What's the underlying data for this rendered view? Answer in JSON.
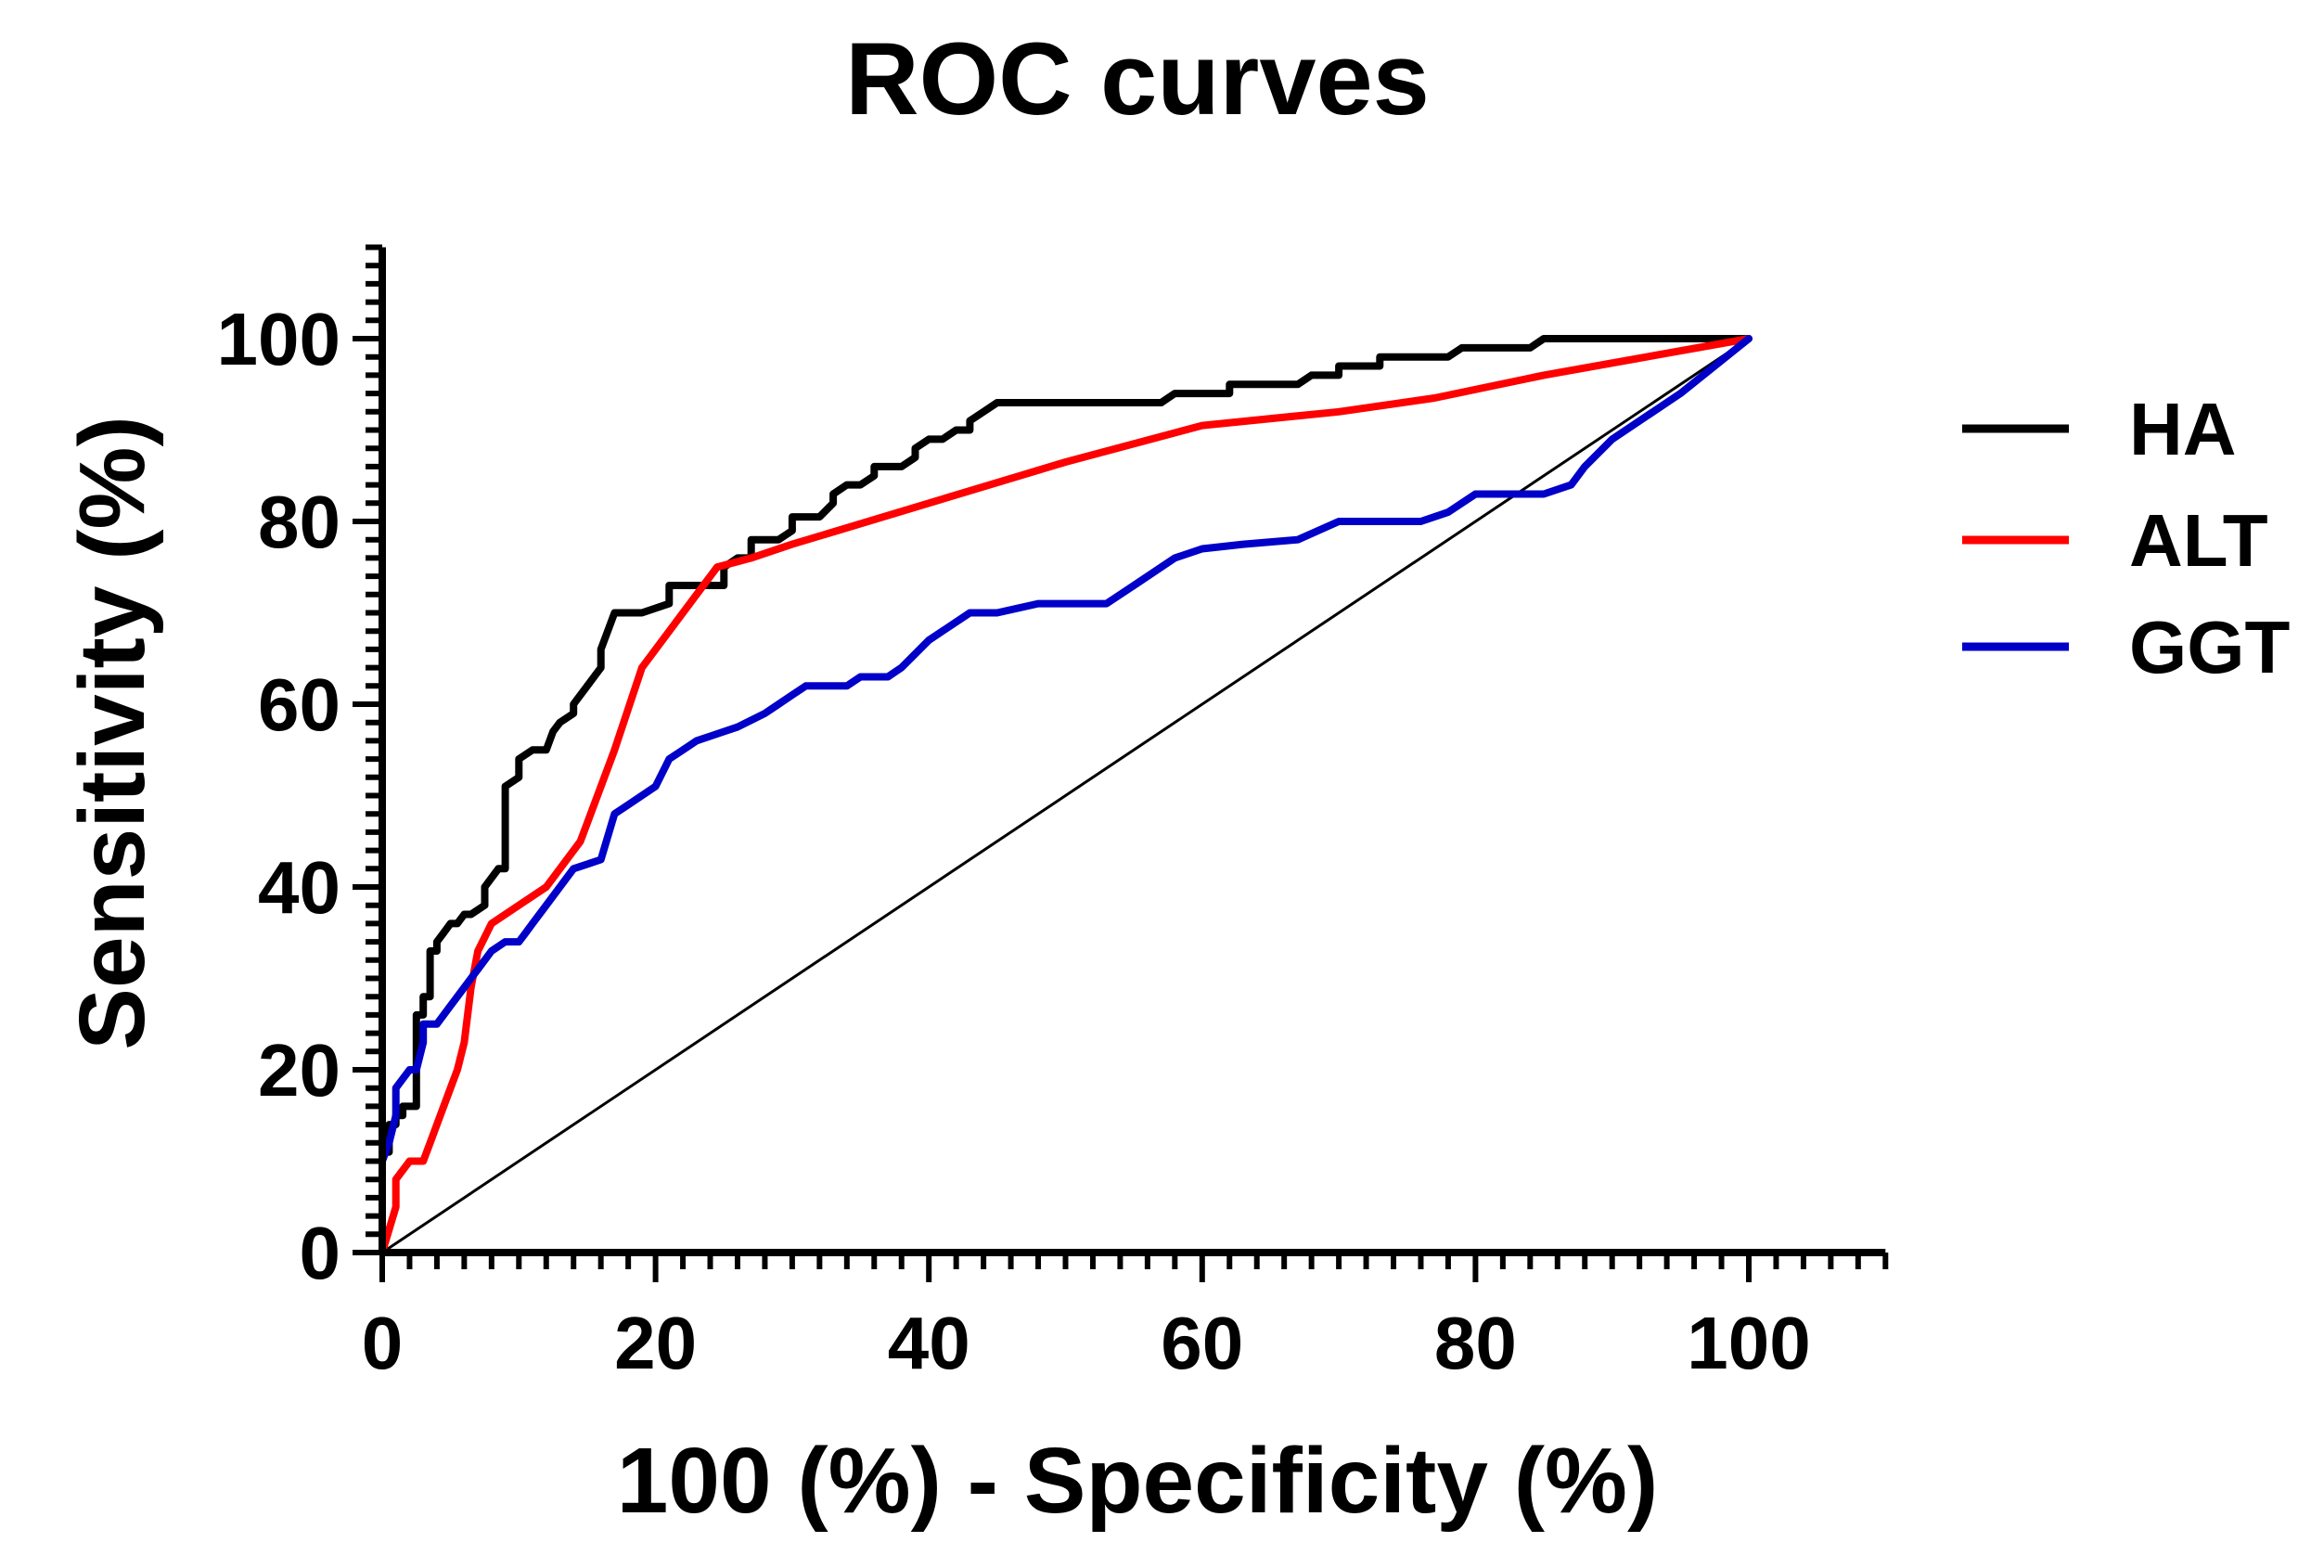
{
  "chart_data": {
    "type": "line",
    "title": "ROC curves",
    "xlabel": "100 (%) - Specificity (%)",
    "ylabel": "Sensitivity (%)",
    "xlim": [
      0,
      110
    ],
    "ylim": [
      0,
      110
    ],
    "xticks": [
      0,
      20,
      40,
      60,
      80,
      100
    ],
    "yticks": [
      0,
      20,
      40,
      60,
      80,
      100
    ],
    "xtick_labels": [
      "0",
      "20",
      "40",
      "60",
      "80",
      "100"
    ],
    "ytick_labels": [
      "0",
      "20",
      "40",
      "60",
      "80",
      "100"
    ],
    "minor_tick_step": 2,
    "grid": false,
    "legend_position": "right",
    "reference_line": {
      "x": [
        0,
        100
      ],
      "y": [
        0,
        100
      ],
      "color": "#000000"
    },
    "series": [
      {
        "name": "HA",
        "color": "#000000",
        "x": [
          0,
          0,
          0.5,
          0.5,
          1,
          1,
          1.5,
          1.5,
          2.5,
          2.5,
          3,
          3,
          3.5,
          3.5,
          4,
          4,
          4.5,
          5,
          5.5,
          6,
          6.5,
          7.5,
          7.5,
          8.5,
          9,
          9,
          10,
          10,
          11,
          12,
          12.5,
          13,
          14,
          14,
          15,
          15.5,
          16,
          16,
          17,
          19,
          21,
          21,
          23,
          25,
          25,
          26,
          27,
          27,
          29,
          30,
          30,
          32,
          33,
          33,
          34,
          35,
          36,
          36,
          38,
          39,
          39,
          40,
          41,
          42,
          43,
          43,
          44,
          45,
          50,
          55,
          57,
          58,
          60,
          62,
          62,
          67,
          68,
          70,
          70,
          73,
          73,
          78,
          79,
          84,
          85,
          100
        ],
        "y": [
          0,
          11,
          11,
          14,
          14,
          15,
          15,
          16,
          16,
          26,
          26,
          28,
          28,
          33,
          33,
          34,
          35,
          36,
          36,
          37,
          37,
          38,
          40,
          42,
          42,
          51,
          52,
          54,
          55,
          55,
          57,
          58,
          59,
          60,
          62,
          63,
          64,
          66,
          70,
          70,
          71,
          73,
          73,
          73,
          75,
          76,
          76,
          78,
          78,
          79,
          80.5,
          80.5,
          82,
          83,
          84,
          84,
          85,
          86,
          86,
          87,
          88,
          89,
          89,
          90,
          90,
          91,
          92,
          93,
          93,
          93,
          93,
          94,
          94,
          94,
          95,
          95,
          96,
          96,
          97,
          97,
          98,
          98,
          99,
          99,
          100,
          100
        ]
      },
      {
        "name": "ALT",
        "color": "#ff0000",
        "x": [
          0,
          1,
          1,
          2,
          3,
          3.5,
          4,
          5,
          5.5,
          6,
          6.5,
          7,
          8,
          10,
          12,
          14.5,
          17,
          19,
          22,
          24.5,
          27,
          30,
          40,
          50,
          60,
          70,
          77,
          85,
          100
        ],
        "y": [
          0,
          5,
          8,
          10,
          10,
          12,
          14,
          18,
          20,
          23,
          29,
          33,
          36,
          38,
          40,
          45,
          55,
          64,
          70,
          75,
          76,
          77.5,
          82,
          86.5,
          90.5,
          92,
          93.5,
          96,
          100
        ]
      },
      {
        "name": "GGT",
        "color": "#0000c8",
        "x": [
          0,
          0,
          0.5,
          1,
          1,
          2,
          2.5,
          3,
          3,
          4,
          5,
          6,
          6.5,
          7,
          8,
          9,
          10,
          10.5,
          11,
          12,
          13,
          14,
          15,
          16,
          17,
          18,
          20,
          21,
          22,
          23,
          24,
          25,
          26,
          28,
          29,
          30,
          31,
          32,
          33,
          34,
          35,
          36,
          37,
          38,
          40,
          43,
          45,
          48,
          50,
          53,
          55,
          58,
          60,
          63,
          67,
          70,
          72,
          76,
          78,
          80,
          85,
          87,
          88,
          90,
          95,
          100
        ],
        "y": [
          0,
          10,
          12,
          15,
          18,
          20,
          20,
          23,
          25,
          25,
          27,
          29,
          30,
          31,
          33,
          34,
          34,
          35,
          36,
          38,
          40,
          42,
          42.5,
          43,
          48,
          49,
          51,
          54,
          55,
          56,
          56.5,
          57,
          57.5,
          59,
          60,
          61,
          62,
          62,
          62,
          62,
          63,
          63,
          63,
          64,
          67,
          70,
          70,
          71,
          71,
          71,
          73,
          76,
          77,
          77.5,
          78,
          80,
          80,
          80,
          81,
          83,
          83,
          84,
          86,
          89,
          94,
          100
        ]
      }
    ]
  }
}
